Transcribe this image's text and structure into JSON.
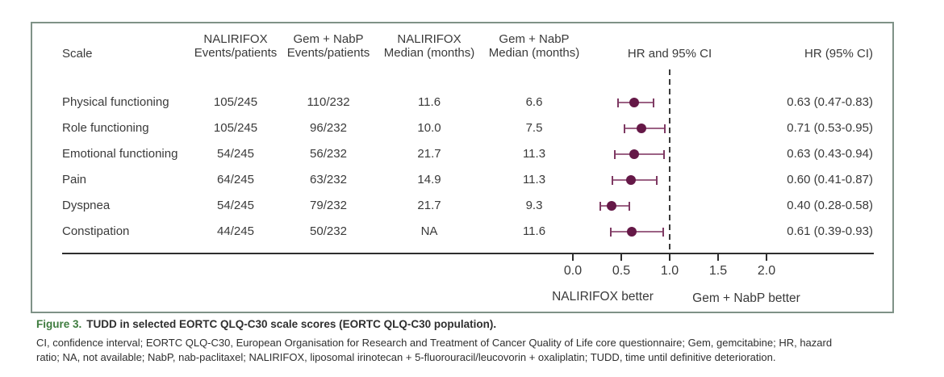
{
  "colors": {
    "marker": "#651847",
    "ci_line": "#9c6284",
    "ci_cap": "#7e3a63",
    "box_border": "#7f9287",
    "figure_label_green": "#3e7c3e"
  },
  "table": {
    "headers": {
      "scale": "Scale",
      "naliri_events": [
        "NALIRIFOX",
        "Events/patients"
      ],
      "gem_events": [
        "Gem + NabP",
        "Events/patients"
      ],
      "naliri_median": [
        "NALIRIFOX",
        "Median (months)"
      ],
      "gem_median": [
        "Gem + NabP",
        "Median (months)"
      ],
      "plot": "HR and 95% CI",
      "hr": "HR (95% CI)"
    }
  },
  "chart_data": {
    "type": "forest",
    "title": "TUDD in selected EORTC QLQ-C30 scale scores",
    "x_axis": {
      "tick_labels": [
        "0.0",
        "0.5",
        "1.0",
        "1.5",
        "2.0"
      ],
      "tick_values": [
        0,
        0.5,
        1.0,
        1.5,
        2.0
      ],
      "reference_value": 1.0,
      "left_region_label": "NALIRIFOX better",
      "right_region_label": "Gem + NabP better"
    },
    "rows": [
      {
        "scale": "Physical functioning",
        "naliri_events": "105/245",
        "gem_events": "110/232",
        "naliri_median": "11.6",
        "gem_median": "6.6",
        "hr": 0.63,
        "low": 0.47,
        "high": 0.83,
        "hr_text": "0.63 (0.47-0.83)"
      },
      {
        "scale": "Role functioning",
        "naliri_events": "105/245",
        "gem_events": "96/232",
        "naliri_median": "10.0",
        "gem_median": "7.5",
        "hr": 0.71,
        "low": 0.53,
        "high": 0.95,
        "hr_text": "0.71 (0.53-0.95)"
      },
      {
        "scale": "Emotional functioning",
        "naliri_events": "54/245",
        "gem_events": "56/232",
        "naliri_median": "21.7",
        "gem_median": "11.3",
        "hr": 0.63,
        "low": 0.43,
        "high": 0.94,
        "hr_text": "0.63 (0.43-0.94)"
      },
      {
        "scale": "Pain",
        "naliri_events": "64/245",
        "gem_events": "63/232",
        "naliri_median": "14.9",
        "gem_median": "11.3",
        "hr": 0.6,
        "low": 0.41,
        "high": 0.87,
        "hr_text": "0.60 (0.41-0.87)"
      },
      {
        "scale": "Dyspnea",
        "naliri_events": "54/245",
        "gem_events": "79/232",
        "naliri_median": "21.7",
        "gem_median": "9.3",
        "hr": 0.4,
        "low": 0.28,
        "high": 0.58,
        "hr_text": "0.40 (0.28-0.58)"
      },
      {
        "scale": "Constipation",
        "naliri_events": "44/245",
        "gem_events": "50/232",
        "naliri_median": "NA",
        "gem_median": "11.6",
        "hr": 0.61,
        "low": 0.39,
        "high": 0.93,
        "hr_text": "0.61 (0.39-0.93)"
      }
    ]
  },
  "caption": {
    "label": "Figure 3.",
    "title": "TUDD in selected EORTC QLQ-C30 scale scores (EORTC QLQ-C30 population)."
  },
  "footnote_lines": [
    "CI, confidence interval; EORTC QLQ-C30, European Organisation for Research and Treatment of Cancer Quality of Life core questionnaire; Gem, gemcitabine; HR, hazard",
    "ratio; NA, not available; NabP, nab-paclitaxel; NALIRIFOX, liposomal irinotecan + 5-fluorouracil/leucovorin + oxaliplatin; TUDD, time until definitive deterioration."
  ]
}
